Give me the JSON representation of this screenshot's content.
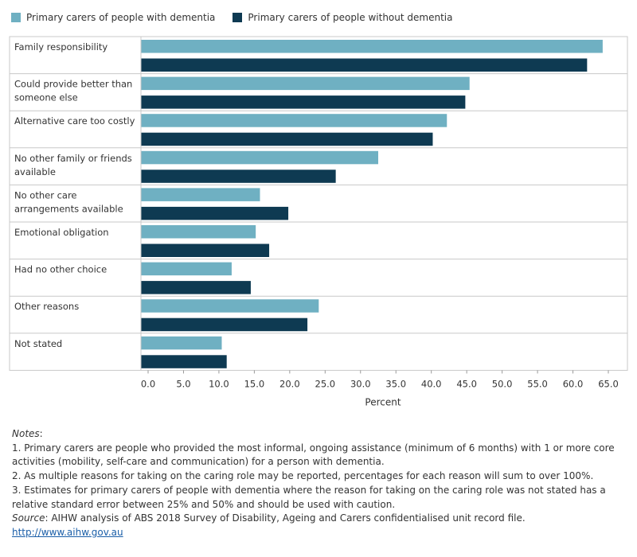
{
  "chart_data": {
    "type": "bar",
    "orientation": "horizontal",
    "categories": [
      [
        "Family responsibility"
      ],
      [
        "Could provide better than",
        "someone else"
      ],
      [
        "Alternative care too costly"
      ],
      [
        "No other family or friends",
        "available"
      ],
      [
        "No other care",
        "arrangements available"
      ],
      [
        "Emotional obligation"
      ],
      [
        "Had no other choice"
      ],
      [
        "Other reasons"
      ],
      [
        "Not stated"
      ]
    ],
    "series": [
      {
        "name": "Primary carers of people with dementia",
        "color": "#6fb0c2",
        "values": [
          64.2,
          45.4,
          42.2,
          32.5,
          15.8,
          15.2,
          11.8,
          24.1,
          10.4
        ]
      },
      {
        "name": "Primary carers of people without dementia",
        "color": "#0e3a52",
        "values": [
          62.0,
          44.8,
          40.2,
          26.5,
          19.8,
          17.1,
          14.5,
          22.5,
          11.1
        ]
      }
    ],
    "x_ticks": [
      "0.0",
      "5.0",
      "10.0",
      "15.0",
      "20.0",
      "25.0",
      "30.0",
      "35.0",
      "40.0",
      "45.0",
      "50.0",
      "55.0",
      "60.0",
      "65.0"
    ],
    "xlabel": "Percent",
    "xlim": [
      0,
      67.5
    ],
    "legend": "top-left"
  },
  "notes": {
    "heading": "Notes",
    "heading_suffix": ":",
    "items": [
      "1. Primary carers are people who provided the most informal, ongoing assistance (minimum of 6 months) with 1 or more core activities (mobility, self-care and communication) for a person with dementia.",
      "2. As multiple reasons for taking on the caring role may be reported, percentages for each reason will sum to over 100%.",
      "3. Estimates for primary carers of people with dementia where the reason for taking on the caring role was not stated has a relative standard error between 25% and 50% and should be used with caution."
    ],
    "source_label": "Source",
    "source_text": ": AIHW analysis of ABS 2018 Survey of Disability, Ageing and Carers confidentialised unit record file.",
    "link": "http://www.aihw.gov.au"
  }
}
